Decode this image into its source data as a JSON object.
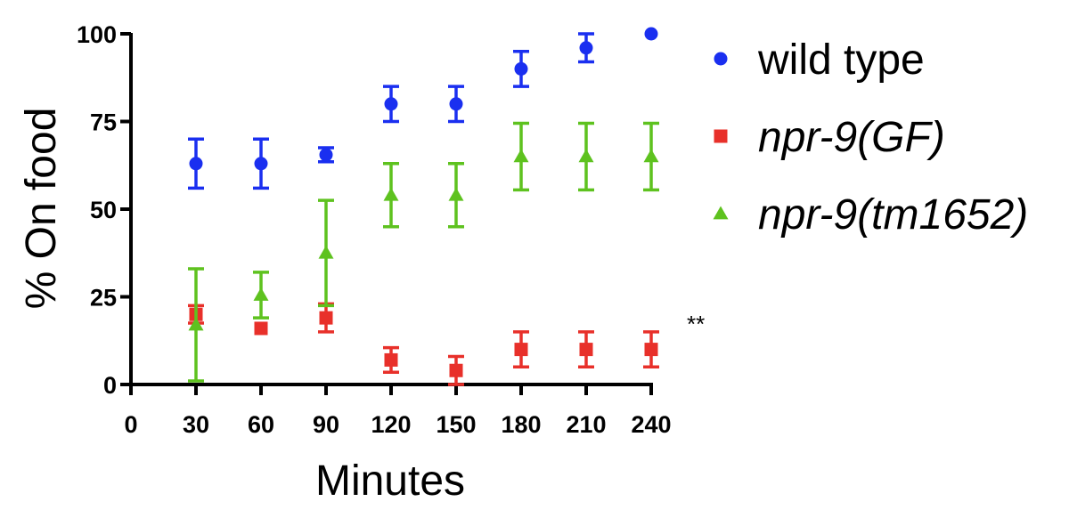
{
  "chart_data": {
    "type": "scatter",
    "xlabel": "Minutes",
    "ylabel": "% On food",
    "xlim": [
      0,
      240
    ],
    "ylim": [
      0,
      100
    ],
    "x_ticks": [
      0,
      30,
      60,
      90,
      120,
      150,
      180,
      210,
      240
    ],
    "y_ticks": [
      0,
      25,
      50,
      75,
      100
    ],
    "grid": false,
    "legend_position": "right",
    "annotation": "**",
    "series": [
      {
        "name": "wild type",
        "italic": false,
        "marker": "circle",
        "color": "#1a2ff0",
        "x": [
          30,
          60,
          90,
          120,
          150,
          180,
          210,
          240
        ],
        "y": [
          63,
          63,
          65.5,
          80,
          80,
          90,
          96,
          100
        ],
        "err_low": [
          7,
          7,
          2,
          5,
          5,
          5,
          4,
          0
        ],
        "err_high": [
          7,
          7,
          2,
          5,
          5,
          5,
          4,
          0
        ]
      },
      {
        "name": "npr-9(GF)",
        "italic": true,
        "marker": "square",
        "color": "#e8302a",
        "x": [
          30,
          60,
          90,
          120,
          150,
          180,
          210,
          240
        ],
        "y": [
          20,
          16,
          19,
          7,
          4,
          10,
          10,
          10
        ],
        "err_low": [
          2.5,
          0,
          4,
          3.5,
          4,
          5,
          5,
          5
        ],
        "err_high": [
          2.5,
          0,
          4,
          3.5,
          4,
          5,
          5,
          5
        ]
      },
      {
        "name": "npr-9(tm1652)",
        "italic": true,
        "marker": "triangle",
        "color": "#5ec21f",
        "x": [
          30,
          60,
          90,
          120,
          150,
          180,
          210,
          240
        ],
        "y": [
          17,
          25.5,
          37.5,
          54,
          54,
          65,
          65,
          65
        ],
        "err_low": [
          16,
          6.5,
          15,
          9,
          9,
          9.5,
          9.5,
          9.5
        ],
        "err_high": [
          16,
          6.5,
          15,
          9,
          9,
          9.5,
          9.5,
          9.5
        ]
      }
    ]
  }
}
